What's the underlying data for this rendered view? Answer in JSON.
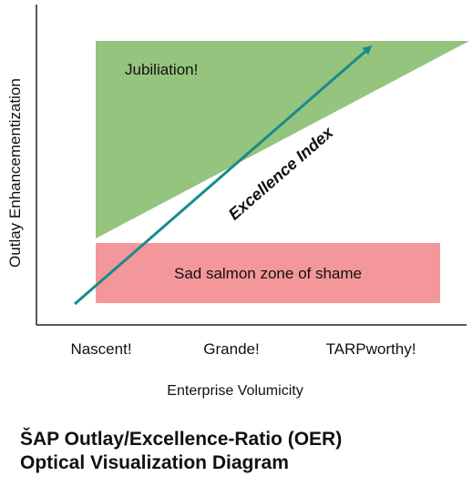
{
  "axes": {
    "y_label": "Outlay Enhancementization",
    "x_label": "Enterprise Volumicity",
    "x_ticks": [
      "Nascent!",
      "Grande!",
      "TARPworthy!"
    ]
  },
  "regions": {
    "green": {
      "label": "Jubiliation!",
      "color": "#94c47d"
    },
    "red": {
      "label": "Sad salmon zone of shame",
      "color": "#f4979a"
    }
  },
  "arrow": {
    "label": "Excellence Index",
    "color": "#1b8a8c"
  },
  "title": {
    "line1": "ŠAP Outlay/Excellence-Ratio (OER)",
    "line2": "Optical Visualization Diagram"
  }
}
